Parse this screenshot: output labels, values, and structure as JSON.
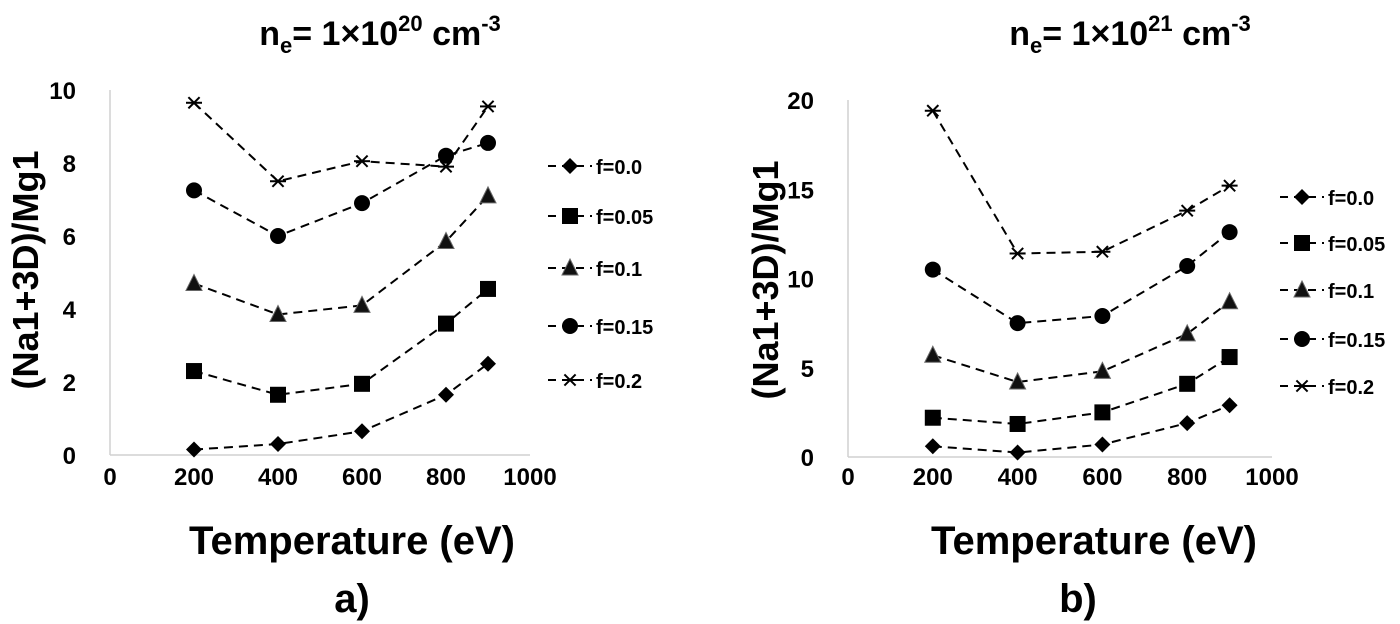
{
  "chart_data": [
    {
      "type": "line",
      "panel_label": "a)",
      "title": {
        "base": "n",
        "sub": "e",
        "mid": "= 1×10",
        "sup": "20",
        "unit": " cm",
        "unit_sup": "-3"
      },
      "xlabel": "Temperature (eV)",
      "ylabel": "(Na1+3D)/Mg1",
      "xlim": [
        0,
        1000
      ],
      "ylim": [
        0,
        10
      ],
      "xticks": [
        "0",
        "200",
        "400",
        "600",
        "800",
        "1000"
      ],
      "yticks": [
        "0",
        "2",
        "4",
        "6",
        "8",
        "10"
      ],
      "x": [
        200,
        400,
        600,
        800,
        900
      ],
      "legend_position": "right",
      "series": [
        {
          "name": "f=0.0",
          "marker": "diamond",
          "values": [
            0.15,
            0.3,
            0.65,
            1.65,
            2.5
          ]
        },
        {
          "name": "f=0.05",
          "marker": "square",
          "values": [
            2.3,
            1.65,
            1.95,
            3.6,
            4.55
          ]
        },
        {
          "name": "f=0.1",
          "marker": "triangle",
          "values": [
            4.7,
            3.85,
            4.1,
            5.85,
            7.1
          ]
        },
        {
          "name": "f=0.15",
          "marker": "circle",
          "values": [
            7.25,
            6.0,
            6.9,
            8.2,
            8.55
          ]
        },
        {
          "name": "f=0.2",
          "marker": "asterisk",
          "values": [
            9.65,
            7.5,
            8.05,
            7.9,
            9.55
          ]
        }
      ]
    },
    {
      "type": "line",
      "panel_label": "b)",
      "title": {
        "base": "n",
        "sub": "e",
        "mid": "= 1×10",
        "sup": "21",
        "unit": " cm",
        "unit_sup": "-3"
      },
      "xlabel": "Temperature (eV)",
      "ylabel": "(Na1+3D)/Mg1",
      "xlim": [
        0,
        1000
      ],
      "ylim": [
        0,
        20
      ],
      "xticks": [
        "0",
        "200",
        "400",
        "600",
        "800",
        "1000"
      ],
      "yticks": [
        "0",
        "5",
        "10",
        "15",
        "20"
      ],
      "x": [
        200,
        400,
        600,
        800,
        900
      ],
      "legend_position": "right",
      "series": [
        {
          "name": "f=0.0",
          "marker": "diamond",
          "values": [
            0.6,
            0.25,
            0.7,
            1.9,
            2.9
          ]
        },
        {
          "name": "f=0.05",
          "marker": "square",
          "values": [
            2.2,
            1.85,
            2.5,
            4.1,
            5.6
          ]
        },
        {
          "name": "f=0.1",
          "marker": "triangle",
          "values": [
            5.7,
            4.2,
            4.8,
            6.9,
            8.7
          ]
        },
        {
          "name": "f=0.15",
          "marker": "circle",
          "values": [
            10.5,
            7.5,
            7.9,
            10.7,
            12.6
          ]
        },
        {
          "name": "f=0.2",
          "marker": "asterisk",
          "values": [
            19.4,
            11.4,
            11.5,
            13.8,
            15.2
          ]
        }
      ]
    }
  ]
}
